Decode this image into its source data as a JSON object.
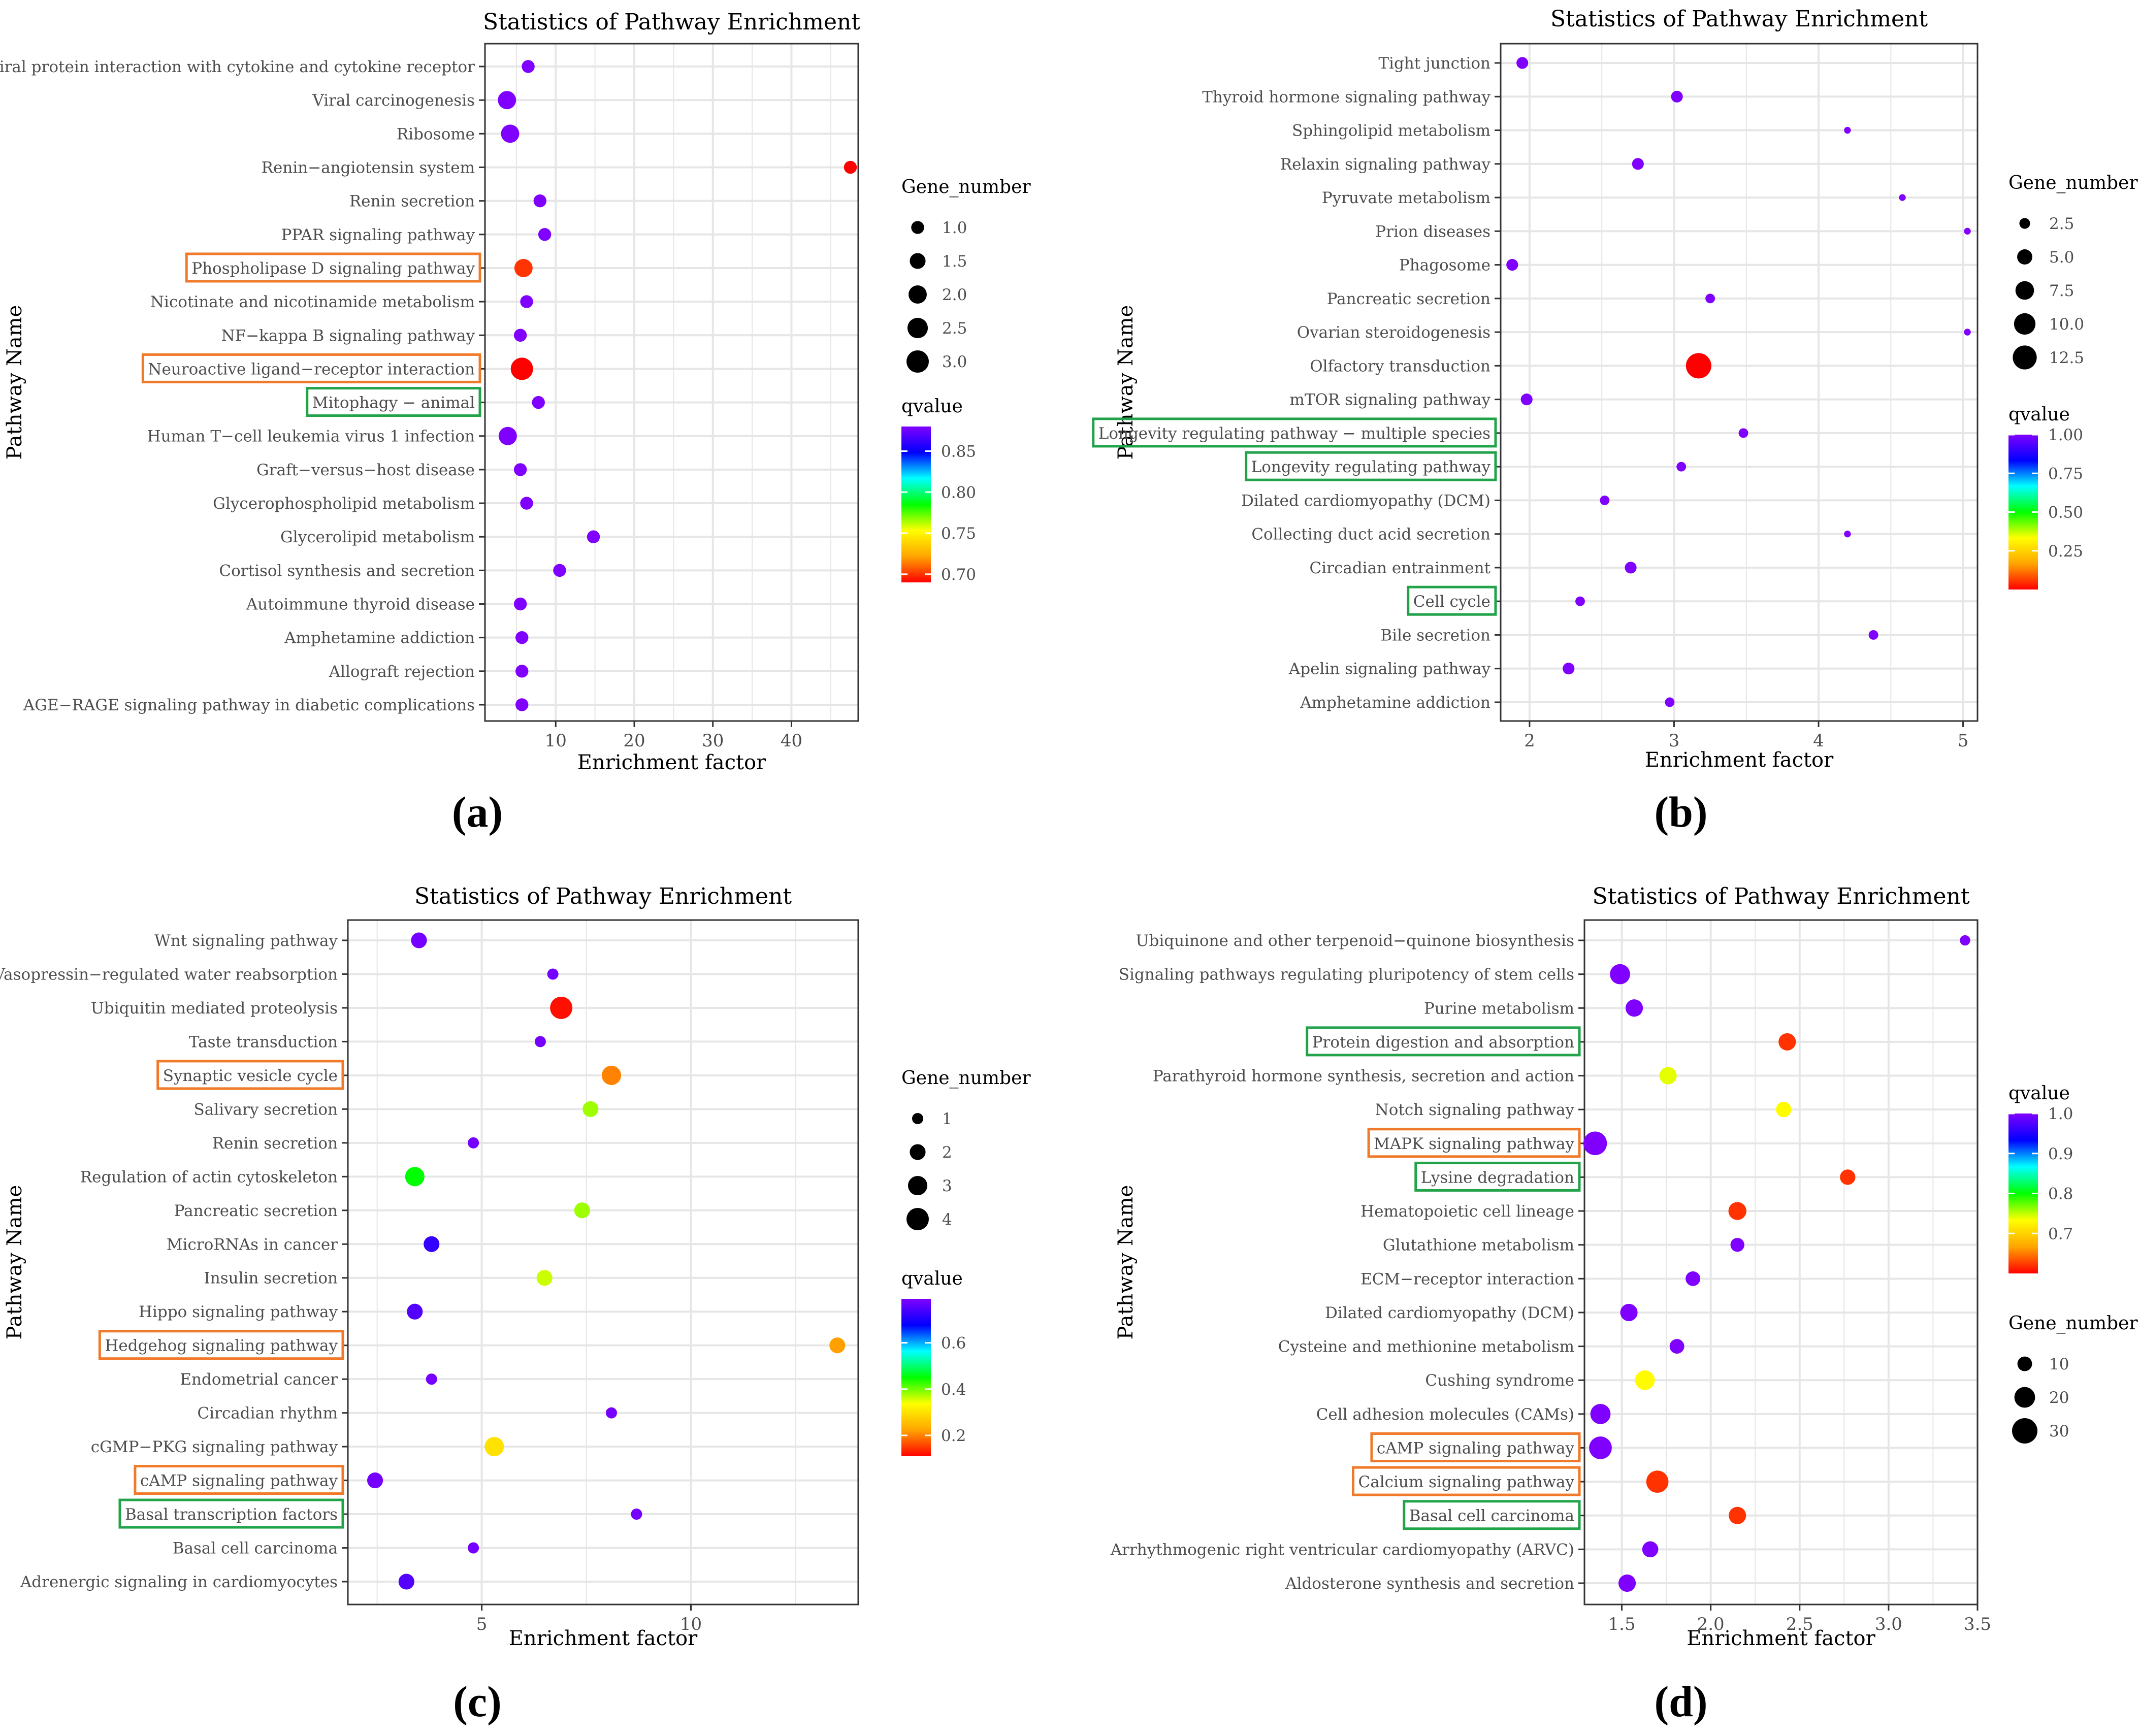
{
  "figure": {
    "panel_labels": [
      "(a)",
      "(b)",
      "(c)",
      "(d)"
    ]
  },
  "colors": {
    "orange_box": "#F07A2A",
    "green_box": "#22A34A",
    "panel_border": "#333333",
    "grid": "#E6E6E6",
    "qvalue_gradient": [
      "#FF0000",
      "#FFA500",
      "#FFFF00",
      "#00FF00",
      "#00FFFF",
      "#0000FF",
      "#8000FF"
    ]
  },
  "chart_data": [
    {
      "id": "a",
      "type": "scatter",
      "title": "Statistics of Pathway Enrichment",
      "xlabel": "Enrichment factor",
      "ylabel": "Pathway Name",
      "xlim": [
        1,
        48.5
      ],
      "xticks": [
        10,
        20,
        30,
        40
      ],
      "categories": [
        "Viral protein interaction with cytokine and cytokine receptor",
        "Viral carcinogenesis",
        "Ribosome",
        "Renin−angiotensin system",
        "Renin secretion",
        "PPAR signaling pathway",
        "Phospholipase D signaling pathway",
        "Nicotinate and nicotinamide metabolism",
        "NF−kappa B signaling pathway",
        "Neuroactive ligand−receptor interaction",
        "Mitophagy − animal",
        "Human T−cell leukemia virus 1 infection",
        "Graft−versus−host disease",
        "Glycerophospholipid metabolism",
        "Glycerolipid metabolism",
        "Cortisol synthesis and secretion",
        "Autoimmune thyroid disease",
        "Amphetamine addiction",
        "Allograft rejection",
        "AGE−RAGE signaling pathway in diabetic complications"
      ],
      "x": [
        6.5,
        3.8,
        4.2,
        47.5,
        8.0,
        8.6,
        5.9,
        6.3,
        5.5,
        5.7,
        7.8,
        3.9,
        5.5,
        6.3,
        14.8,
        10.5,
        5.5,
        5.7,
        5.7,
        5.7
      ],
      "gene_number": [
        1,
        2,
        2,
        1,
        1,
        1,
        2,
        1,
        1,
        3,
        1,
        2,
        1,
        1,
        1,
        1,
        1,
        1,
        1,
        1
      ],
      "qvalue": [
        0.88,
        0.88,
        0.88,
        0.69,
        0.88,
        0.88,
        0.7,
        0.88,
        0.88,
        0.69,
        0.88,
        0.88,
        0.88,
        0.88,
        0.88,
        0.88,
        0.88,
        0.88,
        0.88,
        0.88
      ],
      "highlight": [
        "",
        "",
        "",
        "",
        "",
        "",
        "orange",
        "",
        "",
        "orange",
        "green",
        "",
        "",
        "",
        "",
        "",
        "",
        "",
        "",
        ""
      ],
      "size_legend": {
        "title": "Gene_number",
        "values": [
          1.0,
          1.5,
          2.0,
          2.5,
          3.0
        ],
        "labels": [
          "1.0",
          "1.5",
          "2.0",
          "2.5",
          "3.0"
        ],
        "max_value": 3
      },
      "color_legend": {
        "title": "qvalue",
        "range": [
          0.69,
          0.88
        ],
        "ticks": [
          0.85,
          0.8,
          0.75,
          0.7
        ],
        "labels": [
          "0.85",
          "0.80",
          "0.75",
          "0.70"
        ]
      }
    },
    {
      "id": "b",
      "type": "scatter",
      "title": "Statistics of Pathway Enrichment",
      "xlabel": "Enrichment factor",
      "ylabel": "Pathway Name",
      "xlim": [
        1.8,
        5.1
      ],
      "xticks": [
        2,
        3,
        4,
        5
      ],
      "categories": [
        "Tight junction",
        "Thyroid hormone signaling pathway",
        "Sphingolipid metabolism",
        "Relaxin signaling pathway",
        "Pyruvate metabolism",
        "Prion diseases",
        "Phagosome",
        "Pancreatic secretion",
        "Ovarian steroidogenesis",
        "Olfactory transduction",
        "mTOR signaling pathway",
        "Longevity regulating pathway − multiple species",
        "Longevity regulating pathway",
        "Dilated cardiomyopathy (DCM)",
        "Collecting duct acid secretion",
        "Circadian entrainment",
        "Cell cycle",
        "Bile secretion",
        "Apelin signaling pathway",
        "Amphetamine addiction"
      ],
      "x": [
        1.95,
        3.02,
        4.2,
        2.75,
        4.58,
        5.03,
        1.88,
        3.25,
        5.03,
        3.17,
        1.98,
        3.48,
        3.05,
        2.52,
        4.2,
        2.7,
        2.35,
        4.38,
        2.27,
        2.97
      ],
      "gene_number": [
        3,
        3,
        1,
        3,
        1,
        1,
        3,
        2,
        1,
        14,
        3,
        2,
        2,
        2,
        1,
        3,
        2,
        2,
        3,
        2
      ],
      "qvalue": [
        1.0,
        1.0,
        1.0,
        1.0,
        1.0,
        1.0,
        1.0,
        1.0,
        1.0,
        0.0,
        1.0,
        1.0,
        1.0,
        1.0,
        1.0,
        1.0,
        1.0,
        1.0,
        1.0,
        1.0
      ],
      "highlight": [
        "",
        "",
        "",
        "",
        "",
        "",
        "",
        "",
        "",
        "",
        "",
        "green",
        "green",
        "",
        "",
        "",
        "green",
        "",
        "",
        ""
      ],
      "size_legend": {
        "title": "Gene_number",
        "values": [
          2.5,
          5.0,
          7.5,
          10.0,
          12.5
        ],
        "labels": [
          "2.5",
          "5.0",
          "7.5",
          "10.0",
          "12.5"
        ],
        "max_value": 14
      },
      "color_legend": {
        "title": "qvalue",
        "range": [
          0.0,
          1.0
        ],
        "ticks": [
          1.0,
          0.75,
          0.5,
          0.25
        ],
        "labels": [
          "1.00",
          "0.75",
          "0.50",
          "0.25"
        ]
      }
    },
    {
      "id": "c",
      "type": "scatter",
      "title": "Statistics of Pathway Enrichment",
      "xlabel": "Enrichment factor",
      "ylabel": "Pathway Name",
      "xlim": [
        1.8,
        14.0
      ],
      "xticks": [
        5,
        10
      ],
      "categories": [
        "Wnt signaling pathway",
        "Vasopressin−regulated water reabsorption",
        "Ubiquitin mediated proteolysis",
        "Taste transduction",
        "Synaptic vesicle cycle",
        "Salivary secretion",
        "Renin secretion",
        "Regulation of actin cytoskeleton",
        "Pancreatic secretion",
        "MicroRNAs in cancer",
        "Insulin secretion",
        "Hippo signaling pathway",
        "Hedgehog signaling pathway",
        "Endometrial cancer",
        "Circadian rhythm",
        "cGMP−PKG signaling pathway",
        "cAMP signaling pathway",
        "Basal transcription factors",
        "Basal cell carcinoma",
        "Adrenergic signaling in cardiomyocytes"
      ],
      "x": [
        3.5,
        6.7,
        6.9,
        6.4,
        8.1,
        7.6,
        4.8,
        3.4,
        7.4,
        3.8,
        6.5,
        3.4,
        13.5,
        3.8,
        8.1,
        5.3,
        2.45,
        8.7,
        4.8,
        3.2
      ],
      "gene_number": [
        2,
        1,
        4,
        1,
        3,
        2,
        1,
        3,
        2,
        2,
        2,
        2,
        2,
        1,
        1,
        3,
        2,
        1,
        1,
        2
      ],
      "qvalue": [
        0.78,
        0.78,
        0.12,
        0.78,
        0.2,
        0.38,
        0.78,
        0.45,
        0.38,
        0.72,
        0.36,
        0.75,
        0.22,
        0.78,
        0.78,
        0.3,
        0.78,
        0.78,
        0.78,
        0.75
      ],
      "highlight": [
        "",
        "",
        "",
        "",
        "orange",
        "",
        "",
        "",
        "",
        "",
        "",
        "",
        "orange",
        "",
        "",
        "",
        "orange",
        "green",
        "",
        ""
      ],
      "size_legend": {
        "title": "Gene_number",
        "values": [
          1,
          2,
          3,
          4
        ],
        "labels": [
          "1",
          "2",
          "3",
          "4"
        ],
        "max_value": 4
      },
      "color_legend": {
        "title": "qvalue",
        "range": [
          0.11,
          0.79
        ],
        "ticks": [
          0.6,
          0.4,
          0.2
        ],
        "labels": [
          "0.6",
          "0.4",
          "0.2"
        ]
      }
    },
    {
      "id": "d",
      "type": "scatter",
      "title": "Statistics of Pathway Enrichment",
      "xlabel": "Enrichment factor",
      "ylabel": "Pathway Name",
      "xlim": [
        1.29,
        3.5
      ],
      "xticks": [
        1.5,
        2.0,
        2.5,
        3.0,
        3.5
      ],
      "xtick_labels": [
        "1.5",
        "2.0",
        "2.5",
        "3.0",
        "3.5"
      ],
      "categories": [
        "Ubiquinone and other terpenoid−quinone biosynthesis",
        "Signaling pathways regulating pluripotency of stem cells",
        "Purine metabolism",
        "Protein digestion and absorption",
        "Parathyroid hormone synthesis, secretion and action",
        "Notch signaling pathway",
        "MAPK signaling pathway",
        "Lysine degradation",
        "Hematopoietic cell lineage",
        "Glutathione metabolism",
        "ECM−receptor interaction",
        "Dilated cardiomyopathy (DCM)",
        "Cysteine and methionine metabolism",
        "Cushing syndrome",
        "Cell adhesion molecules (CAMs)",
        "cAMP signaling pathway",
        "Calcium signaling pathway",
        "Basal cell carcinoma",
        "Arrhythmogenic right ventricular cardiomyopathy (ARVC)",
        "Aldosterone synthesis and secretion"
      ],
      "x": [
        3.43,
        1.49,
        1.57,
        2.43,
        1.76,
        2.41,
        1.35,
        2.77,
        2.15,
        2.15,
        1.9,
        1.54,
        1.81,
        1.63,
        1.38,
        1.38,
        1.7,
        2.15,
        1.66,
        1.53
      ],
      "gene_number": [
        5,
        19,
        14,
        14,
        14,
        11,
        26,
        11,
        15,
        9,
        10,
        14,
        10,
        18,
        19,
        24,
        23,
        14,
        12,
        14
      ],
      "qvalue": [
        1.0,
        1.0,
        1.0,
        0.62,
        0.74,
        0.73,
        1.0,
        0.62,
        0.62,
        1.0,
        1.0,
        1.0,
        1.0,
        0.73,
        1.0,
        1.0,
        0.62,
        0.62,
        1.0,
        1.0
      ],
      "highlight": [
        "",
        "",
        "",
        "green",
        "",
        "",
        "orange",
        "green",
        "",
        "",
        "",
        "",
        "",
        "",
        "",
        "orange",
        "orange",
        "green",
        "",
        ""
      ],
      "size_legend": {
        "title": "Gene_number",
        "values": [
          10,
          20,
          30
        ],
        "labels": [
          "10",
          "20",
          "30"
        ],
        "max_value": 30
      },
      "color_legend": {
        "title": "qvalue",
        "range": [
          0.6,
          1.0
        ],
        "ticks": [
          1.0,
          0.9,
          0.8,
          0.7
        ],
        "labels": [
          "1.0",
          "0.9",
          "0.8",
          "0.7"
        ]
      }
    }
  ]
}
